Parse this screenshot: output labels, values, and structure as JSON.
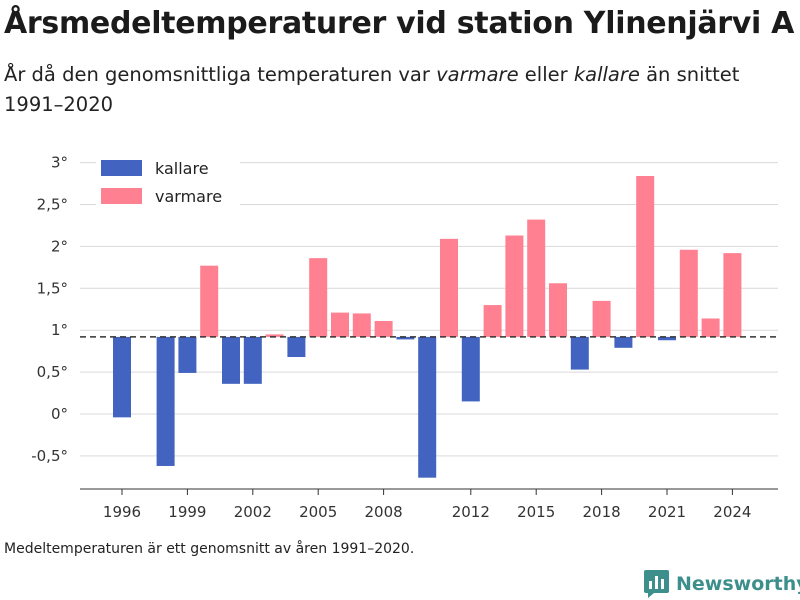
{
  "title": "Årsmedeltemperaturer vid station Ylinenjärvi A",
  "subtitle": {
    "part1": "År då den genomsnittliga temperaturen var ",
    "warmer": "varmare",
    "part2": " eller ",
    "colder": "kallare",
    "part3": " än snittet 1991–2020"
  },
  "footnote": "Medeltemperaturen är ett genomsnitt av åren 1991–2020.",
  "brand": "Newsworthy",
  "colors": {
    "colder": "#4263bf",
    "warmer": "#ff8090",
    "grid": "#d9d9d9",
    "reference": "#333333",
    "brand": "#3d8f8c"
  },
  "chart_data": {
    "type": "bar",
    "title": "Årsmedeltemperaturer vid station Ylinenjärvi A",
    "xlabel": "",
    "ylabel": "",
    "baseline": 0.92,
    "ylim": [
      -0.92,
      3.1
    ],
    "yticks": [
      -0.5,
      0,
      0.5,
      1,
      1.5,
      2,
      2.5,
      3
    ],
    "ytick_labels": [
      "-0,5°",
      "0°",
      "0,5°",
      "1°",
      "1,5°",
      "2°",
      "2,5°",
      "3°"
    ],
    "xticks": [
      1996,
      1999,
      2002,
      2005,
      2008,
      2012,
      2015,
      2018,
      2021,
      2024
    ],
    "legend": {
      "position": "top-left",
      "items": [
        "kallare",
        "varmare"
      ]
    },
    "grid": true,
    "x": [
      1996,
      1998,
      1999,
      2000,
      2001,
      2002,
      2003,
      2004,
      2005,
      2006,
      2007,
      2008,
      2009,
      2010,
      2011,
      2012,
      2013,
      2014,
      2015,
      2016,
      2017,
      2018,
      2019,
      2020,
      2021,
      2022,
      2023,
      2024
    ],
    "values": [
      -0.04,
      -0.62,
      0.49,
      1.77,
      0.36,
      0.36,
      0.95,
      0.68,
      1.86,
      1.21,
      1.2,
      1.11,
      0.89,
      -0.76,
      2.09,
      0.15,
      1.3,
      2.13,
      2.32,
      1.56,
      0.53,
      1.35,
      0.79,
      2.84,
      0.88,
      1.96,
      1.14,
      1.92
    ],
    "series": [
      {
        "name": "kallare",
        "color": "#4263bf"
      },
      {
        "name": "varmare",
        "color": "#ff8090"
      }
    ]
  }
}
